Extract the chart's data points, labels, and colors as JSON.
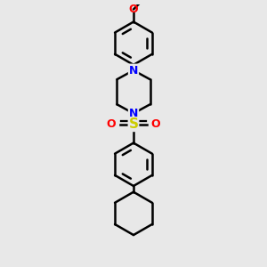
{
  "background_color": "#e8e8e8",
  "bond_color": "#000000",
  "nitrogen_color": "#0000ff",
  "sulfur_color": "#cccc00",
  "oxygen_color": "#ff0000",
  "line_width": 1.8,
  "figsize": [
    3.0,
    3.0
  ],
  "dpi": 100,
  "xlim": [
    -1.2,
    1.2
  ],
  "ylim": [
    -2.6,
    2.6
  ]
}
